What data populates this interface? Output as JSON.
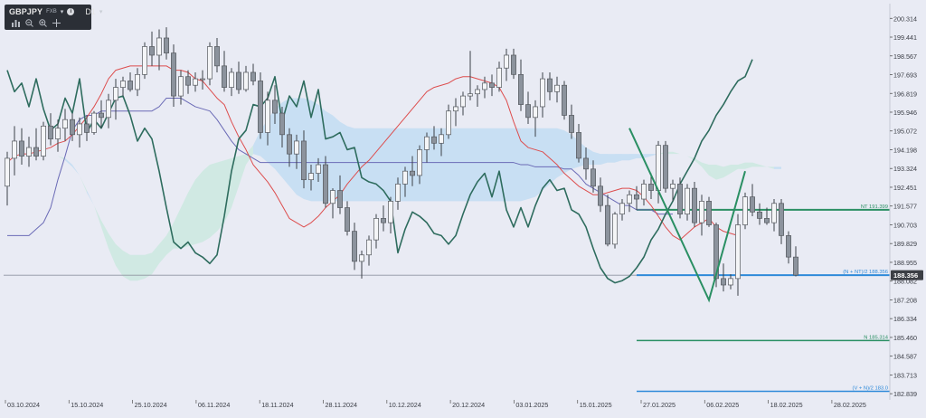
{
  "toolbar": {
    "symbol": "GBPJPY",
    "symbol_sub": "FXB",
    "info_glyph": "i",
    "timeframe": "D1",
    "icons": [
      "bar-chart-icon",
      "zoom-out-icon",
      "zoom-in-icon",
      "move-icon"
    ]
  },
  "chart_data": {
    "type": "candlestick",
    "x_ticks": [
      "03.10.2024",
      "15.10.2024",
      "25.10.2024",
      "06.11.2024",
      "18.11.2024",
      "28.11.2024",
      "10.12.2024",
      "20.12.2024",
      "03.01.2025",
      "15.01.2025",
      "27.01.2025",
      "06.02.2025",
      "18.02.2025",
      "28.02.2025"
    ],
    "y_ticks": [
      200.314,
      199.441,
      198.567,
      197.693,
      196.819,
      195.946,
      195.072,
      194.198,
      193.324,
      192.451,
      191.577,
      190.703,
      189.829,
      188.955,
      188.082,
      187.208,
      186.334,
      185.46,
      184.587,
      183.713,
      182.839
    ],
    "ylim": [
      182.55,
      201.0
    ],
    "current_price": 188.356,
    "candles": [
      [
        192.5,
        194.1,
        191.6,
        193.8
      ],
      [
        193.8,
        195.3,
        193.0,
        194.6
      ],
      [
        194.6,
        195.2,
        193.5,
        193.9
      ],
      [
        193.9,
        194.8,
        193.4,
        194.3
      ],
      [
        194.3,
        195.2,
        193.7,
        193.9
      ],
      [
        193.9,
        195.5,
        193.7,
        195.3
      ],
      [
        195.3,
        195.9,
        194.4,
        194.7
      ],
      [
        194.7,
        195.6,
        194.1,
        195.2
      ],
      [
        195.2,
        196.1,
        194.6,
        195.6
      ],
      [
        195.6,
        195.9,
        194.6,
        194.9
      ],
      [
        194.9,
        195.7,
        194.3,
        195.4
      ],
      [
        195.4,
        195.8,
        194.6,
        195.0
      ],
      [
        195.0,
        196.0,
        194.9,
        195.9
      ],
      [
        195.9,
        196.5,
        195.2,
        195.7
      ],
      [
        195.7,
        196.8,
        195.2,
        196.5
      ],
      [
        196.5,
        197.5,
        195.6,
        197.1
      ],
      [
        197.1,
        197.6,
        196.7,
        197.4
      ],
      [
        197.4,
        197.8,
        196.9,
        197.0
      ],
      [
        197.0,
        198.0,
        196.7,
        197.7
      ],
      [
        197.7,
        199.2,
        197.5,
        199.0
      ],
      [
        199.0,
        199.7,
        198.1,
        198.6
      ],
      [
        198.6,
        199.8,
        197.9,
        199.4
      ],
      [
        199.4,
        199.9,
        198.4,
        198.7
      ],
      [
        198.7,
        199.1,
        196.2,
        196.7
      ],
      [
        196.7,
        197.9,
        196.3,
        197.6
      ],
      [
        197.6,
        197.9,
        196.8,
        197.2
      ],
      [
        197.2,
        197.8,
        196.9,
        197.5
      ],
      [
        197.5,
        197.9,
        197.0,
        197.5
      ],
      [
        197.5,
        199.2,
        197.2,
        199.0
      ],
      [
        199.0,
        199.4,
        197.8,
        198.1
      ],
      [
        198.1,
        198.8,
        196.9,
        197.1
      ],
      [
        197.1,
        198.0,
        196.7,
        197.8
      ],
      [
        197.8,
        198.3,
        196.8,
        197.0
      ],
      [
        197.0,
        198.1,
        196.9,
        197.8
      ],
      [
        197.8,
        198.2,
        197.2,
        197.4
      ],
      [
        197.4,
        197.8,
        194.7,
        195.0
      ],
      [
        195.0,
        196.9,
        194.4,
        196.5
      ],
      [
        196.5,
        197.2,
        195.4,
        195.9
      ],
      [
        195.9,
        196.2,
        194.3,
        194.9
      ],
      [
        194.9,
        195.2,
        193.4,
        194.0
      ],
      [
        194.0,
        194.9,
        193.3,
        194.6
      ],
      [
        194.6,
        195.1,
        192.4,
        192.8
      ],
      [
        192.8,
        193.5,
        192.3,
        193.1
      ],
      [
        193.1,
        193.8,
        192.7,
        193.5
      ],
      [
        193.5,
        193.9,
        191.5,
        191.7
      ],
      [
        191.7,
        192.4,
        191.0,
        192.3
      ],
      [
        192.3,
        193.0,
        191.2,
        191.5
      ],
      [
        191.5,
        191.8,
        190.2,
        190.4
      ],
      [
        190.4,
        190.8,
        188.6,
        189.0
      ],
      [
        189.0,
        189.5,
        188.2,
        189.3
      ],
      [
        189.3,
        190.2,
        188.8,
        190.0
      ],
      [
        190.0,
        191.2,
        189.6,
        191.0
      ],
      [
        191.0,
        191.6,
        190.4,
        190.8
      ],
      [
        190.8,
        192.0,
        190.3,
        191.8
      ],
      [
        191.8,
        192.9,
        191.4,
        192.6
      ],
      [
        192.6,
        193.4,
        192.0,
        193.2
      ],
      [
        193.2,
        193.9,
        192.5,
        193.0
      ],
      [
        193.0,
        194.4,
        192.6,
        194.2
      ],
      [
        194.2,
        195.0,
        193.6,
        194.8
      ],
      [
        194.8,
        195.3,
        194.2,
        194.5
      ],
      [
        194.5,
        195.2,
        193.9,
        194.9
      ],
      [
        194.9,
        196.3,
        194.7,
        196.0
      ],
      [
        196.0,
        196.6,
        195.3,
        196.2
      ],
      [
        196.2,
        196.9,
        195.8,
        196.7
      ],
      [
        196.7,
        198.8,
        196.5,
        196.8
      ],
      [
        196.8,
        197.2,
        196.2,
        197.0
      ],
      [
        197.0,
        197.6,
        196.6,
        197.3
      ],
      [
        197.3,
        197.7,
        196.7,
        197.1
      ],
      [
        197.1,
        198.3,
        196.9,
        198.0
      ],
      [
        198.0,
        198.9,
        197.4,
        198.6
      ],
      [
        198.6,
        198.9,
        197.5,
        197.7
      ],
      [
        197.7,
        198.4,
        196.0,
        196.3
      ],
      [
        196.3,
        196.9,
        195.4,
        195.7
      ],
      [
        195.7,
        196.5,
        194.8,
        196.2
      ],
      [
        196.2,
        197.8,
        195.7,
        197.5
      ],
      [
        197.5,
        197.8,
        196.5,
        196.9
      ],
      [
        196.9,
        197.6,
        196.4,
        197.2
      ],
      [
        197.2,
        197.4,
        195.6,
        195.8
      ],
      [
        195.8,
        196.3,
        194.7,
        195.0
      ],
      [
        195.0,
        195.4,
        193.6,
        193.8
      ],
      [
        193.8,
        194.3,
        192.8,
        193.3
      ],
      [
        193.3,
        193.7,
        192.2,
        192.5
      ],
      [
        192.5,
        192.9,
        191.3,
        191.6
      ],
      [
        191.6,
        192.1,
        189.7,
        189.8
      ],
      [
        189.8,
        191.3,
        189.6,
        191.2
      ],
      [
        191.2,
        191.9,
        190.9,
        191.7
      ],
      [
        191.7,
        192.3,
        191.3,
        192.1
      ],
      [
        192.1,
        192.5,
        191.4,
        191.9
      ],
      [
        191.9,
        192.8,
        191.6,
        192.6
      ],
      [
        192.6,
        193.1,
        191.9,
        192.3
      ],
      [
        192.3,
        194.6,
        191.7,
        194.4
      ],
      [
        194.4,
        194.6,
        192.2,
        192.4
      ],
      [
        192.4,
        192.8,
        191.8,
        192.6
      ],
      [
        192.6,
        192.9,
        191.0,
        191.2
      ],
      [
        191.2,
        192.6,
        190.9,
        192.4
      ],
      [
        192.4,
        192.7,
        190.6,
        190.8
      ],
      [
        190.8,
        192.1,
        190.2,
        191.8
      ],
      [
        191.8,
        192.0,
        190.6,
        190.7
      ],
      [
        190.7,
        190.8,
        187.8,
        188.2
      ],
      [
        188.2,
        188.9,
        187.6,
        187.9
      ],
      [
        187.9,
        188.4,
        187.7,
        188.2
      ],
      [
        188.2,
        191.2,
        187.4,
        190.7
      ],
      [
        190.7,
        192.2,
        190.5,
        192.0
      ],
      [
        192.0,
        192.6,
        191.1,
        191.3
      ],
      [
        191.3,
        191.7,
        190.7,
        191.0
      ],
      [
        191.0,
        191.5,
        190.7,
        190.8
      ],
      [
        190.8,
        191.9,
        190.4,
        191.7
      ],
      [
        191.7,
        191.9,
        189.8,
        190.2
      ],
      [
        190.2,
        190.4,
        188.9,
        189.2
      ],
      [
        189.2,
        189.7,
        188.3,
        188.36
      ]
    ],
    "ichimoku": {
      "tenkan": [
        193.6,
        193.9,
        194.0,
        194.0,
        194.1,
        194.2,
        194.3,
        194.5,
        194.6,
        194.9,
        195.3,
        195.7,
        196.2,
        196.8,
        197.5,
        197.9,
        198.0,
        198.1,
        198.1,
        198.1,
        198.1,
        198.1,
        198.1,
        197.9,
        197.9,
        197.8,
        197.5,
        197.4,
        197.0,
        196.6,
        196.3,
        195.5,
        194.8,
        194.2,
        193.5,
        193.1,
        192.7,
        192.2,
        191.6,
        191.0,
        190.8,
        190.6,
        190.8,
        191.1,
        191.5,
        191.8,
        192.1,
        192.6,
        193.0,
        193.4,
        193.7,
        194.1,
        194.5,
        194.9,
        195.3,
        195.7,
        196.1,
        196.5,
        196.9,
        197.1,
        197.2,
        197.3,
        197.5,
        197.6,
        197.6,
        197.5,
        197.4,
        197.3,
        197.1,
        196.5,
        195.5,
        194.6,
        194.3,
        194.2,
        194.1,
        193.8,
        193.5,
        193.1,
        192.8,
        192.5,
        192.3,
        192.1,
        192.1,
        192.2,
        192.3,
        192.4,
        192.4,
        192.3,
        192.0,
        191.6,
        191.1,
        190.6,
        190.2,
        190.0,
        190.3,
        190.6,
        190.8,
        191.0,
        190.6,
        190.4,
        190.3,
        190.2
      ],
      "kijun": [
        190.2,
        190.2,
        190.2,
        190.2,
        190.5,
        190.8,
        191.5,
        192.8,
        193.9,
        195.1,
        195.6,
        195.8,
        195.8,
        196.0,
        196.0,
        196.0,
        196.0,
        196.0,
        196.0,
        196.0,
        196.0,
        196.2,
        196.6,
        196.6,
        196.6,
        196.4,
        196.2,
        196.1,
        196.0,
        195.6,
        195.1,
        194.6,
        194.2,
        194.0,
        193.8,
        193.6,
        193.6,
        193.6,
        193.6,
        193.6,
        193.6,
        193.6,
        193.6,
        193.6,
        193.6,
        193.6,
        193.6,
        193.6,
        193.6,
        193.6,
        193.6,
        193.6,
        193.6,
        193.6,
        193.6,
        193.6,
        193.6,
        193.6,
        193.6,
        193.6,
        193.6,
        193.6,
        193.6,
        193.6,
        193.6,
        193.6,
        193.6,
        193.6,
        193.6,
        193.6,
        193.6,
        193.5,
        193.5,
        193.4,
        193.4,
        193.4,
        193.4,
        193.3,
        193.3,
        193.0,
        192.6,
        192.4,
        192.2,
        192.0,
        191.8,
        191.6,
        191.6,
        191.4,
        191.4,
        191.4,
        191.2,
        191.2,
        191.2
      ],
      "senkou_a": [
        193.9,
        193.9,
        193.9,
        193.9,
        193.9,
        193.9,
        193.9,
        193.9,
        193.7,
        193.4,
        193.0,
        192.2,
        191.6,
        190.9,
        190.3,
        189.8,
        189.5,
        189.3,
        189.3,
        189.3,
        189.4,
        189.8,
        190.2,
        190.8,
        191.5,
        192.2,
        192.8,
        193.2,
        193.5,
        193.6,
        193.7,
        193.8,
        193.9,
        194.0,
        194.0,
        193.9,
        193.6,
        193.3,
        192.9,
        192.5,
        192.1,
        191.9,
        191.8,
        191.8,
        191.8,
        191.8,
        191.8,
        191.8,
        191.8,
        191.8,
        191.8,
        191.8,
        191.8,
        191.8,
        191.8,
        191.8,
        191.8,
        191.8,
        191.8,
        191.8,
        191.8,
        191.8,
        191.8,
        191.8,
        191.8,
        191.8,
        191.8,
        191.8,
        191.8,
        191.8,
        191.8,
        191.8,
        191.9,
        192.0,
        192.3,
        192.6,
        192.9,
        193.1,
        193.3,
        193.4,
        193.5,
        193.5,
        193.5,
        193.6,
        193.6,
        193.7,
        193.7,
        193.8,
        193.8,
        193.9,
        194.0,
        194.1,
        194.1,
        194.0,
        193.9,
        193.8,
        193.6,
        193.5,
        193.5,
        193.4,
        193.5,
        193.5,
        193.6,
        193.6,
        193.5,
        193.4,
        193.3,
        193.3
      ],
      "senkou_b": [
        193.9,
        193.9,
        193.9,
        193.9,
        193.9,
        193.9,
        193.9,
        193.9,
        193.8,
        193.5,
        193.0,
        192.3,
        191.6,
        190.6,
        189.6,
        188.8,
        188.3,
        188.1,
        188.1,
        188.2,
        188.4,
        188.9,
        189.3,
        189.6,
        189.6,
        189.7,
        189.8,
        189.9,
        190.1,
        190.4,
        190.8,
        191.5,
        192.5,
        193.5,
        194.4,
        195.1,
        195.6,
        196.1,
        196.4,
        196.6,
        196.6,
        196.6,
        196.5,
        196.3,
        196.0,
        195.8,
        195.5,
        195.3,
        195.2,
        195.2,
        195.2,
        195.2,
        195.2,
        195.2,
        195.2,
        195.2,
        195.2,
        195.2,
        195.2,
        195.2,
        195.2,
        195.2,
        195.2,
        195.2,
        195.2,
        195.2,
        195.2,
        195.2,
        195.2,
        195.2,
        195.2,
        195.2,
        195.2,
        195.2,
        195.2,
        195.2,
        195.2,
        195.1,
        194.9,
        194.6,
        194.3,
        194.1,
        194.0,
        194.0,
        194.0,
        194.0,
        194.0,
        194.0,
        194.0,
        194.0,
        194.0,
        194.0,
        194.0,
        194.0,
        193.9,
        193.7,
        193.4,
        193.0,
        192.8,
        192.9,
        193.1,
        193.3,
        193.3,
        193.4,
        193.4,
        193.4,
        193.4,
        193.4
      ],
      "chikou": [
        197.9,
        196.9,
        197.3,
        196.2,
        197.5,
        196.1,
        195.1,
        195.4,
        196.6,
        195.9,
        197.5,
        195.0,
        195.6,
        195.2,
        195.9,
        196.6,
        196.7,
        195.8,
        194.6,
        195.2,
        194.7,
        193.2,
        191.5,
        189.9,
        189.6,
        189.9,
        189.4,
        189.2,
        188.9,
        189.3,
        191.1,
        193.2,
        194.7,
        195.1,
        196.3,
        196.2,
        196.6,
        197.6,
        195.5,
        196.7,
        196.2,
        197.4,
        195.7,
        197.0,
        194.7,
        194.8,
        195.0,
        194.2,
        194.3,
        192.9,
        192.7,
        192.6,
        192.3,
        191.8,
        189.4,
        190.5,
        191.3,
        191.1,
        190.8,
        190.3,
        190.2,
        189.8,
        190.2,
        191.2,
        192.1,
        192.7,
        193.1,
        192.0,
        193.2,
        191.4,
        190.6,
        191.5,
        190.6,
        191.6,
        192.4,
        192.8,
        192.3,
        192.4,
        191.4,
        191.2,
        190.6,
        189.6,
        188.7,
        188.2,
        188.0,
        188.1,
        188.3,
        188.7,
        189.2,
        190.0,
        190.5,
        191.2,
        191.8,
        192.6,
        193.2,
        193.8,
        194.6,
        195.1,
        195.8,
        196.3,
        196.9,
        197.4,
        197.6,
        198.4
      ]
    },
    "annotations": {
      "nt_label": "NT 191.399",
      "mid_label": "(N + NT)/2 188.356",
      "n_label": "N 185.314",
      "v_label": "(V + N)/2 183.0",
      "nt_value": 191.399,
      "mid_value": 188.356,
      "n_value": 185.314,
      "v_value": 182.95,
      "wave_points": [
        {
          "date": "24.01.2025",
          "price": 195.2
        },
        {
          "date": "05.02.2025",
          "price": 187.2
        },
        {
          "date": "12.02.2025",
          "price": 193.2
        }
      ]
    },
    "colors": {
      "candle": "#8c939d",
      "wick": "#3c4047",
      "tenkan": "#dd4d4d",
      "kijun": "#6b6bb6",
      "chikou": "#2e6c5e",
      "cloud_bull": "#cfe9e2",
      "cloud_bear": "#c6def2",
      "green_line": "#2a8f63",
      "blue_line": "#2e8ad9",
      "price_tag": "#3c3f45"
    }
  }
}
